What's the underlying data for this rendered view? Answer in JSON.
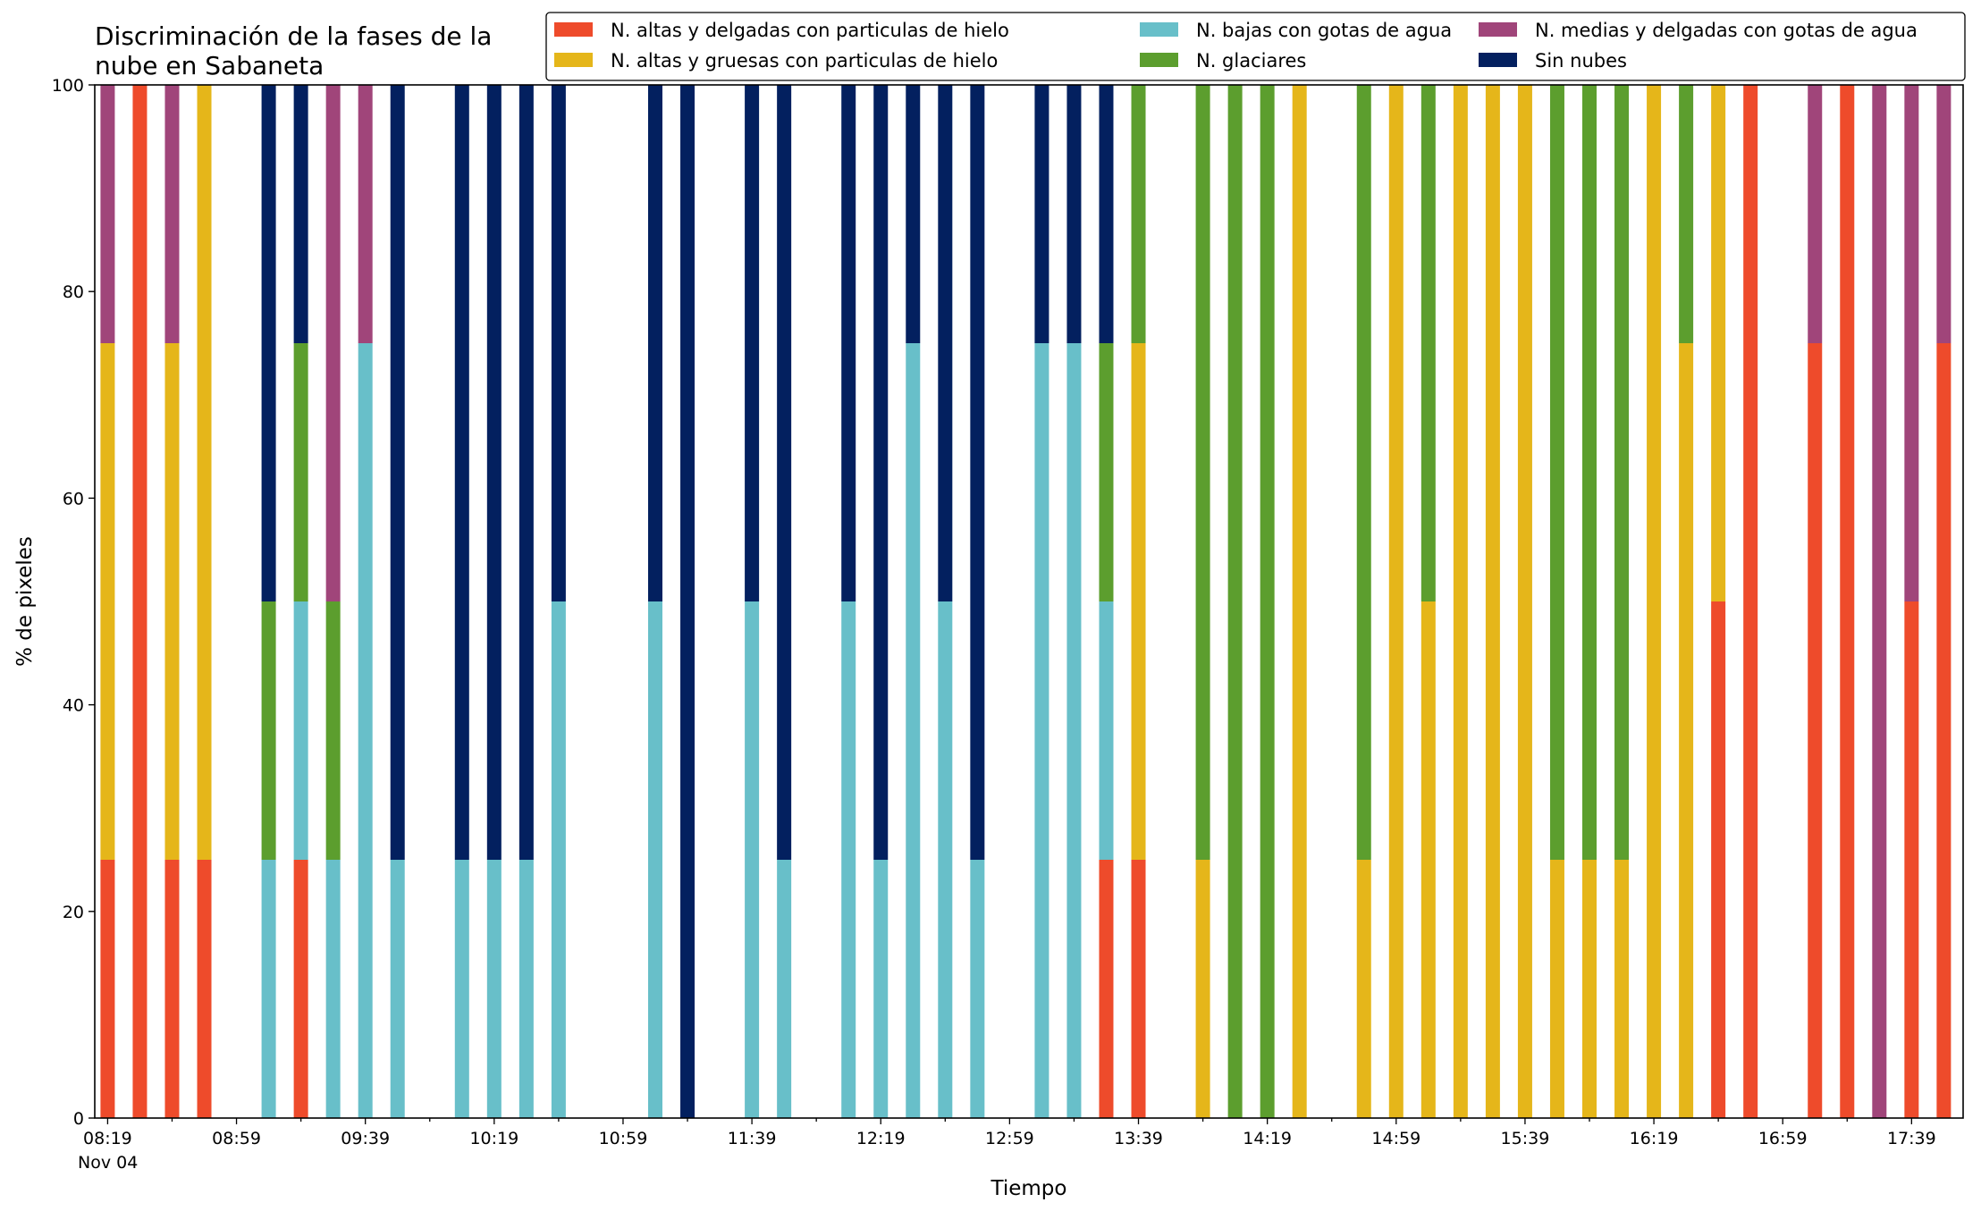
{
  "chart_data": {
    "type": "bar",
    "stacked": true,
    "title": [
      "Discriminación de la fases de la",
      "nube en Sabaneta"
    ],
    "xlabel": "Tiempo",
    "ylabel": "% de pixeles",
    "ylim": [
      0,
      100
    ],
    "yticks": [
      0,
      20,
      40,
      60,
      80,
      100
    ],
    "date_label": "Nov 04",
    "xlim": [
      "08:15",
      "17:55"
    ],
    "xticks": [
      "08:19",
      "08:59",
      "09:39",
      "10:19",
      "10:59",
      "11:39",
      "12:19",
      "12:59",
      "13:39",
      "14:19",
      "14:59",
      "15:39",
      "16:19",
      "16:59",
      "17:39"
    ],
    "legend": {
      "placement": "top-right",
      "columns": 3
    },
    "series": [
      {
        "name": "N. altas y delgadas con particulas de hielo",
        "color": "#ee4b2b"
      },
      {
        "name": "N. altas y gruesas con particulas de hielo",
        "color": "#e5b61a"
      },
      {
        "name": "N. bajas con gotas de agua",
        "color": "#68bfc9"
      },
      {
        "name": "N. glaciares",
        "color": "#5c9e2e"
      },
      {
        "name": "N. medias y delgadas con gotas de agua",
        "color": "#a0457a"
      },
      {
        "name": "Sin nubes",
        "color": "#03205f"
      }
    ],
    "bars": [
      {
        "x": "08:19",
        "values": [
          25,
          50,
          0,
          0,
          25,
          0
        ]
      },
      {
        "x": "08:29",
        "values": [
          100,
          0,
          0,
          0,
          0,
          0
        ]
      },
      {
        "x": "08:39",
        "values": [
          25,
          50,
          0,
          0,
          25,
          0
        ]
      },
      {
        "x": "08:49",
        "values": [
          25,
          75,
          0,
          0,
          0,
          0
        ]
      },
      {
        "x": "09:09",
        "values": [
          0,
          0,
          25,
          25,
          0,
          50
        ]
      },
      {
        "x": "09:19",
        "values": [
          25,
          0,
          25,
          25,
          0,
          25
        ]
      },
      {
        "x": "09:29",
        "values": [
          0,
          0,
          25,
          25,
          50,
          0
        ]
      },
      {
        "x": "09:39",
        "values": [
          0,
          0,
          75,
          0,
          25,
          0
        ]
      },
      {
        "x": "09:49",
        "values": [
          0,
          0,
          25,
          0,
          0,
          75
        ]
      },
      {
        "x": "10:09",
        "values": [
          0,
          0,
          25,
          0,
          0,
          75
        ]
      },
      {
        "x": "10:19",
        "values": [
          0,
          0,
          25,
          0,
          0,
          75
        ]
      },
      {
        "x": "10:29",
        "values": [
          0,
          0,
          25,
          0,
          0,
          75
        ]
      },
      {
        "x": "10:39",
        "values": [
          0,
          0,
          50,
          0,
          0,
          50
        ]
      },
      {
        "x": "11:09",
        "values": [
          0,
          0,
          50,
          0,
          0,
          50
        ]
      },
      {
        "x": "11:19",
        "values": [
          0,
          0,
          0,
          0,
          0,
          100
        ]
      },
      {
        "x": "11:39",
        "values": [
          0,
          0,
          50,
          0,
          0,
          50
        ]
      },
      {
        "x": "11:49",
        "values": [
          0,
          0,
          25,
          0,
          0,
          75
        ]
      },
      {
        "x": "12:09",
        "values": [
          0,
          0,
          50,
          0,
          0,
          50
        ]
      },
      {
        "x": "12:19",
        "values": [
          0,
          0,
          25,
          0,
          0,
          75
        ]
      },
      {
        "x": "12:29",
        "values": [
          0,
          0,
          75,
          0,
          0,
          25
        ]
      },
      {
        "x": "12:39",
        "values": [
          0,
          0,
          50,
          0,
          0,
          50
        ]
      },
      {
        "x": "12:49",
        "values": [
          0,
          0,
          25,
          0,
          0,
          75
        ]
      },
      {
        "x": "13:09",
        "values": [
          0,
          0,
          75,
          0,
          0,
          25
        ]
      },
      {
        "x": "13:19",
        "values": [
          0,
          0,
          75,
          0,
          0,
          25
        ]
      },
      {
        "x": "13:29",
        "values": [
          25,
          0,
          25,
          25,
          0,
          25
        ]
      },
      {
        "x": "13:39",
        "values": [
          25,
          50,
          0,
          25,
          0,
          0
        ]
      },
      {
        "x": "13:59",
        "values": [
          0,
          25,
          0,
          75,
          0,
          0
        ]
      },
      {
        "x": "14:09",
        "values": [
          0,
          0,
          0,
          100,
          0,
          0
        ]
      },
      {
        "x": "14:19",
        "values": [
          0,
          0,
          0,
          100,
          0,
          0
        ]
      },
      {
        "x": "14:29",
        "values": [
          0,
          100,
          0,
          0,
          0,
          0
        ]
      },
      {
        "x": "14:49",
        "values": [
          0,
          25,
          0,
          75,
          0,
          0
        ]
      },
      {
        "x": "14:59",
        "values": [
          0,
          100,
          0,
          0,
          0,
          0
        ]
      },
      {
        "x": "15:09",
        "values": [
          0,
          50,
          0,
          50,
          0,
          0
        ]
      },
      {
        "x": "15:19",
        "values": [
          0,
          100,
          0,
          0,
          0,
          0
        ]
      },
      {
        "x": "15:29",
        "values": [
          0,
          100,
          0,
          0,
          0,
          0
        ]
      },
      {
        "x": "15:39",
        "values": [
          0,
          100,
          0,
          0,
          0,
          0
        ]
      },
      {
        "x": "15:49",
        "values": [
          0,
          25,
          0,
          75,
          0,
          0
        ]
      },
      {
        "x": "15:59",
        "values": [
          0,
          25,
          0,
          75,
          0,
          0
        ]
      },
      {
        "x": "16:09",
        "values": [
          0,
          25,
          0,
          75,
          0,
          0
        ]
      },
      {
        "x": "16:19",
        "values": [
          0,
          100,
          0,
          0,
          0,
          0
        ]
      },
      {
        "x": "16:29",
        "values": [
          0,
          75,
          0,
          25,
          0,
          0
        ]
      },
      {
        "x": "16:39",
        "values": [
          50,
          50,
          0,
          0,
          0,
          0
        ]
      },
      {
        "x": "16:49",
        "values": [
          100,
          0,
          0,
          0,
          0,
          0
        ]
      },
      {
        "x": "17:09",
        "values": [
          75,
          0,
          0,
          0,
          25,
          0
        ]
      },
      {
        "x": "17:19",
        "values": [
          100,
          0,
          0,
          0,
          0,
          0
        ]
      },
      {
        "x": "17:29",
        "values": [
          0,
          0,
          0,
          0,
          100,
          0
        ]
      },
      {
        "x": "17:39",
        "values": [
          50,
          0,
          0,
          0,
          50,
          0
        ]
      },
      {
        "x": "17:49",
        "values": [
          75,
          0,
          0,
          0,
          25,
          0
        ]
      }
    ]
  }
}
